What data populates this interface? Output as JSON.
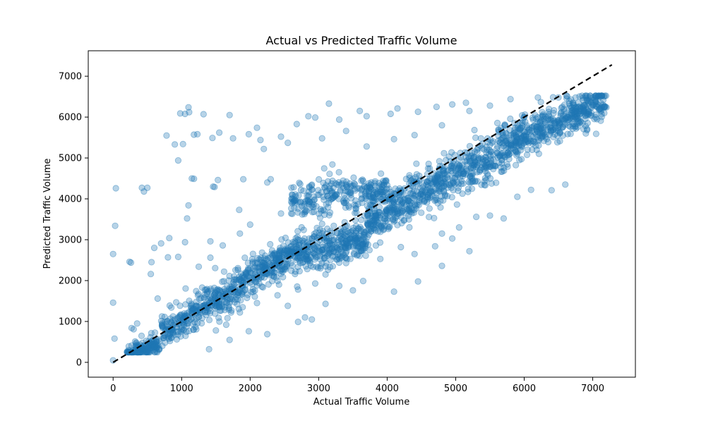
{
  "chart_data": {
    "type": "scatter",
    "title": "Actual vs Predicted Traffic Volume",
    "xlabel": "Actual Traffic Volume",
    "ylabel": "Predicted Traffic Volume",
    "xlim": [
      -363,
      7623
    ],
    "ylim": [
      -363,
      7623
    ],
    "xticks": [
      0,
      1000,
      2000,
      3000,
      4000,
      5000,
      6000,
      7000
    ],
    "yticks": [
      0,
      1000,
      2000,
      3000,
      4000,
      5000,
      6000,
      7000
    ],
    "grid": false,
    "legend": "none",
    "marker_color": "#1f77b4",
    "marker_alpha": 0.35,
    "reference_line": {
      "x": [
        0,
        7280
      ],
      "y": [
        0,
        7280
      ],
      "style": "dashed",
      "color": "#000000"
    },
    "points": [
      [
        0,
        50
      ],
      [
        20,
        580
      ],
      [
        40,
        4260
      ],
      [
        30,
        3340
      ],
      [
        0,
        2650
      ],
      [
        0,
        1460
      ],
      [
        240,
        2460
      ],
      [
        260,
        2440
      ],
      [
        270,
        840
      ],
      [
        300,
        810
      ],
      [
        350,
        950
      ],
      [
        420,
        4270
      ],
      [
        450,
        4180
      ],
      [
        500,
        4270
      ],
      [
        550,
        2160
      ],
      [
        560,
        2450
      ],
      [
        600,
        2800
      ],
      [
        650,
        1560
      ],
      [
        700,
        2910
      ],
      [
        780,
        5550
      ],
      [
        820,
        3040
      ],
      [
        900,
        5330
      ],
      [
        950,
        4940
      ],
      [
        980,
        6090
      ],
      [
        1020,
        5340
      ],
      [
        1050,
        6080
      ],
      [
        1100,
        6240
      ],
      [
        1110,
        6120
      ],
      [
        1150,
        4500
      ],
      [
        1180,
        5570
      ],
      [
        1230,
        5580
      ],
      [
        1320,
        6070
      ],
      [
        1420,
        2960
      ],
      [
        1450,
        5490
      ],
      [
        1460,
        4300
      ],
      [
        1480,
        4290
      ],
      [
        1530,
        4460
      ],
      [
        1550,
        5620
      ],
      [
        1700,
        6050
      ],
      [
        1750,
        5480
      ],
      [
        1840,
        3730
      ],
      [
        1900,
        4480
      ],
      [
        1980,
        5580
      ],
      [
        2100,
        5740
      ],
      [
        2150,
        5440
      ],
      [
        2200,
        5220
      ],
      [
        2250,
        4400
      ],
      [
        2300,
        4480
      ],
      [
        2450,
        5520
      ],
      [
        2550,
        5370
      ],
      [
        2680,
        5830
      ],
      [
        2850,
        6020
      ],
      [
        2950,
        5990
      ],
      [
        3050,
        5480
      ],
      [
        3150,
        6330
      ],
      [
        3300,
        5940
      ],
      [
        3400,
        5660
      ],
      [
        3600,
        6150
      ],
      [
        3700,
        6020
      ],
      [
        4050,
        6080
      ],
      [
        4150,
        6210
      ],
      [
        4350,
        3760
      ],
      [
        4450,
        6130
      ],
      [
        4720,
        6250
      ],
      [
        4950,
        6310
      ],
      [
        5150,
        6350
      ],
      [
        3950,
        3260
      ],
      [
        4200,
        2820
      ],
      [
        4400,
        2650
      ],
      [
        4700,
        2840
      ],
      [
        4800,
        2360
      ],
      [
        5200,
        2720
      ],
      [
        5300,
        3560
      ],
      [
        5500,
        3590
      ],
      [
        6400,
        4210
      ],
      [
        6600,
        4350
      ],
      [
        6100,
        4220
      ],
      [
        5900,
        4050
      ],
      [
        3100,
        1430
      ],
      [
        2900,
        1050
      ],
      [
        3500,
        1760
      ],
      [
        4100,
        1730
      ],
      [
        3650,
        1990
      ],
      [
        3300,
        1870
      ],
      [
        2250,
        690
      ],
      [
        1980,
        760
      ],
      [
        1700,
        550
      ],
      [
        1400,
        320
      ],
      [
        1200,
        1300
      ],
      [
        1050,
        2940
      ],
      [
        1080,
        3520
      ],
      [
        1100,
        3840
      ],
      [
        1180,
        4490
      ],
      [
        800,
        2570
      ],
      [
        950,
        2580
      ],
      [
        1250,
        2340
      ],
      [
        850,
        1340
      ],
      [
        1300,
        1080
      ],
      [
        2550,
        1380
      ],
      [
        2700,
        990
      ],
      [
        2800,
        1100
      ],
      [
        3900,
        2530
      ],
      [
        3400,
        2430
      ],
      [
        3100,
        2150
      ],
      [
        4450,
        1980
      ],
      [
        5700,
        3520
      ],
      [
        6900,
        5600
      ],
      [
        7050,
        5590
      ],
      [
        7150,
        6300
      ],
      [
        7200,
        6240
      ],
      [
        6850,
        5850
      ],
      [
        6650,
        5790
      ],
      [
        7000,
        6290
      ],
      [
        6950,
        6420
      ],
      [
        2000,
        3370
      ],
      [
        1850,
        3150
      ],
      [
        1600,
        2860
      ],
      [
        1420,
        2560
      ],
      [
        2450,
        3640
      ],
      [
        2600,
        3640
      ],
      [
        2900,
        4230
      ],
      [
        3200,
        4840
      ],
      [
        3700,
        5280
      ],
      [
        4100,
        5460
      ],
      [
        4400,
        5560
      ],
      [
        4800,
        5800
      ],
      [
        5200,
        6150
      ],
      [
        5500,
        6280
      ],
      [
        5800,
        6440
      ],
      [
        6200,
        6480
      ],
      [
        6500,
        6480
      ],
      [
        6750,
        6480
      ],
      [
        4800,
        3150
      ],
      [
        4950,
        3030
      ],
      [
        5050,
        3300
      ],
      [
        3650,
        2800
      ],
      [
        3300,
        2440
      ],
      [
        2950,
        1930
      ],
      [
        2700,
        1780
      ],
      [
        2400,
        1640
      ],
      [
        2100,
        1450
      ],
      [
        1850,
        1220
      ],
      [
        1650,
        920
      ],
      [
        1500,
        780
      ]
    ]
  }
}
